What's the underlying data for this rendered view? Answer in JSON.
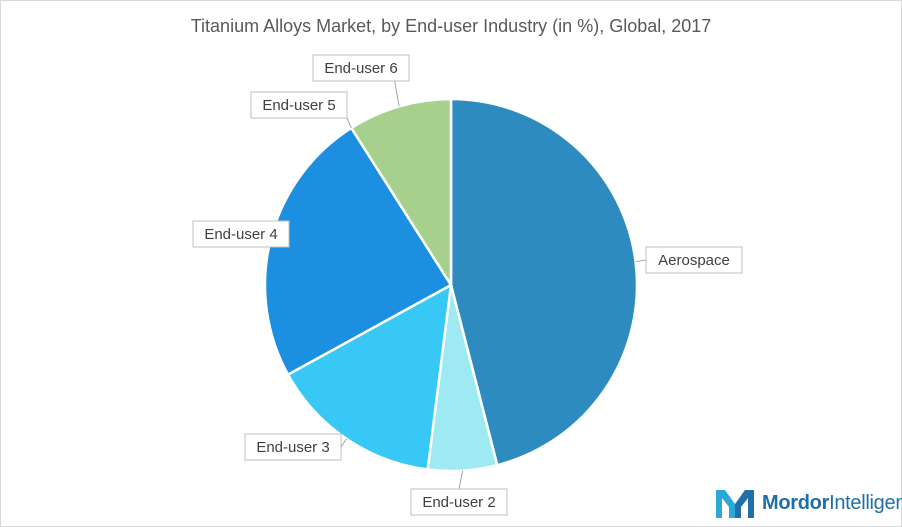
{
  "chart_data": {
    "type": "pie",
    "title": "Titanium Alloys Market, by End-user Industry (in %), Global, 2017",
    "slices": [
      {
        "label": "Aerospace",
        "value": 46,
        "color": "#2e8bc0"
      },
      {
        "label": "End-user 2",
        "value": 6,
        "color": "#9deaf2"
      },
      {
        "label": "End-user 3",
        "value": 15,
        "color": "#38c8f5"
      },
      {
        "label": "End-user 4",
        "value": 24,
        "color": "#1c8fe0"
      },
      {
        "label": "End-user 5",
        "value": 0,
        "color": "#1c8fe0"
      },
      {
        "label": "End-user 6",
        "value": 9,
        "color": "#a8d08d"
      }
    ],
    "start_angle": "12 o'clock",
    "direction": "clockwise",
    "legend": "none (callout labels)"
  },
  "branding": {
    "logo_text_bold": "Mordor",
    "logo_text_regular": "Intelligence",
    "logo_icon": "mordor-m-icon",
    "logo_color": "#1f6fa8"
  }
}
